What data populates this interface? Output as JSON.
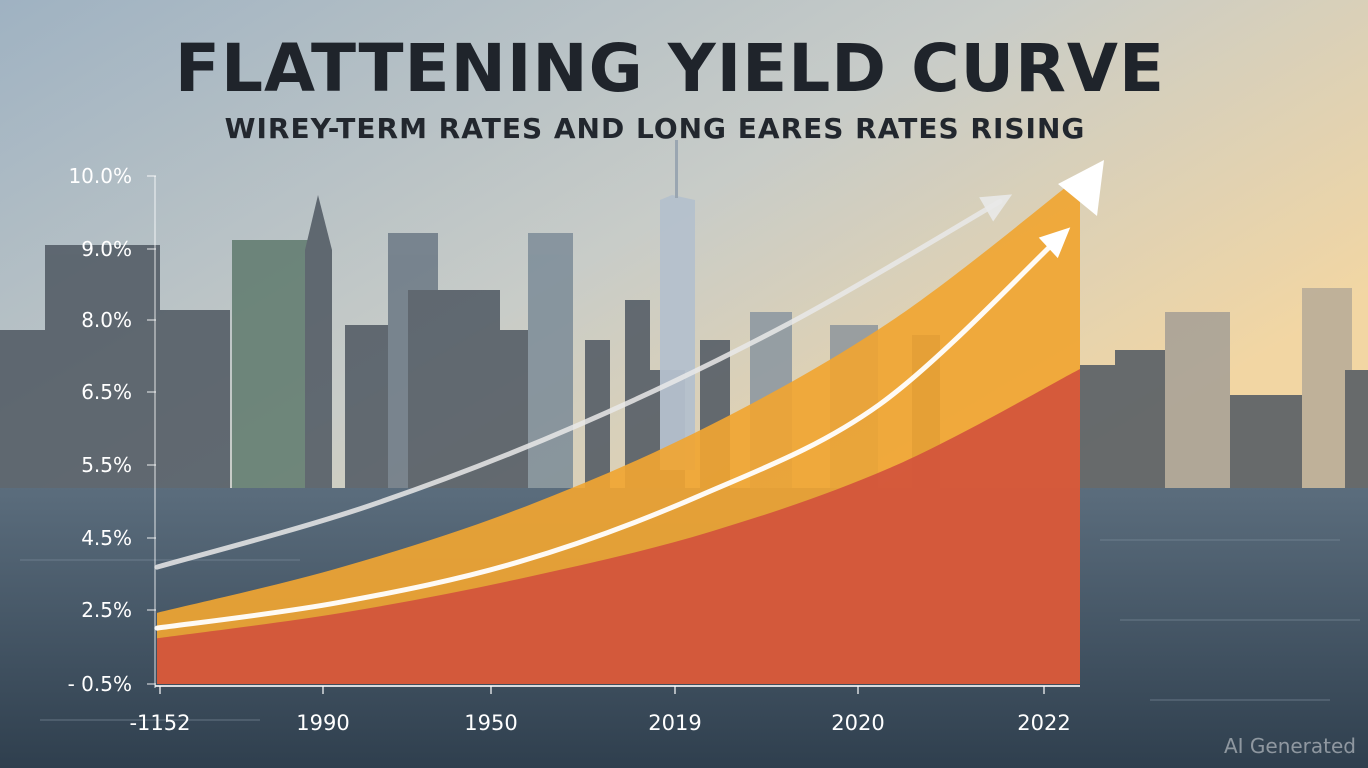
{
  "chart_data": {
    "type": "area",
    "title": "FLATTENING YIELD CURVE",
    "subtitle": "WIREY-TERM RATES AND LONG EARES RATES RISING",
    "yticks": [
      "10.0%",
      "9.0%",
      "8.0%",
      "6.5%",
      "5.5%",
      "4.5%",
      "2.5%",
      "- 0.5%"
    ],
    "xticks": [
      "-1152",
      "1990",
      "1950",
      "2019",
      "2020",
      "2022"
    ],
    "grid": false,
    "series": [
      {
        "color": "#f0a532",
        "values": [
          1.4,
          2.3,
          3.5,
          5.1,
          7.2,
          10.0
        ]
      },
      {
        "color": "#d2513c",
        "values": [
          0.9,
          1.4,
          2.1,
          3.0,
          4.3,
          6.2
        ]
      }
    ],
    "arrows": [
      {
        "color": "#e9e9e9",
        "values": [
          2.3,
          3.5,
          5.1,
          7.1,
          9.5
        ]
      },
      {
        "color": "#ffffff",
        "values": [
          1.1,
          1.6,
          2.4,
          3.7,
          5.5,
          8.8
        ]
      }
    ]
  },
  "watermark": "AI Generated"
}
